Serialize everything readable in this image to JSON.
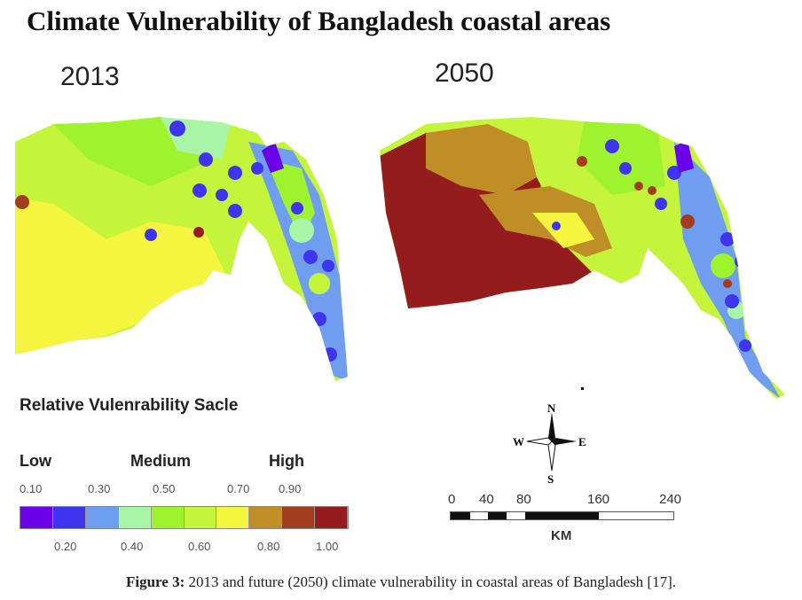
{
  "title": "Climate Vulnerability of Bangladesh coastal areas",
  "maps": [
    {
      "year": "2013"
    },
    {
      "year": "2050"
    }
  ],
  "legend": {
    "title": "Relative Vulenrability Sacle",
    "levels": [
      "Low",
      "Medium",
      "High"
    ],
    "top_ticks": [
      "0.10",
      "0.30",
      "0.50",
      "0.70",
      "0.90"
    ],
    "bottom_ticks": [
      "0.20",
      "0.40",
      "0.60",
      "0.80",
      "1.00"
    ],
    "colors": [
      "#6a00e8",
      "#3f35ee",
      "#6f9ef0",
      "#a8f5a8",
      "#9ef22e",
      "#c4f53a",
      "#f5f540",
      "#c08e27",
      "#a33d20",
      "#941c1c"
    ]
  },
  "compass": {
    "n": "N",
    "s": "S",
    "e": "E",
    "w": "W"
  },
  "scale_bar": {
    "ticks": [
      "0",
      "40",
      "80",
      "160",
      "240"
    ],
    "unit": "KM"
  },
  "caption": {
    "label": "Figure 3:",
    "text": " 2013 and future (2050) climate vulnerability in coastal areas of Bangladesh [17]."
  }
}
